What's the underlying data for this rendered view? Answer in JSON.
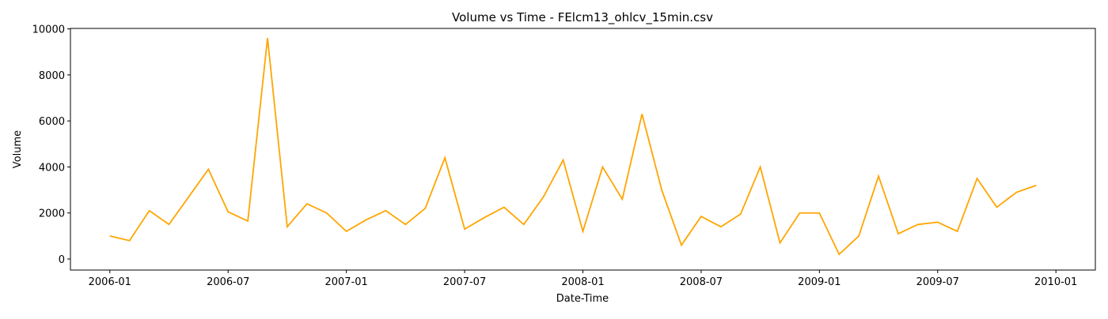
{
  "chart_data": {
    "type": "line",
    "title": "Volume vs Time - FElcm13_ohlcv_15min.csv",
    "xlabel": "Date-Time",
    "ylabel": "Volume",
    "x": [
      "2006-01",
      "2006-02",
      "2006-03",
      "2006-04",
      "2006-05",
      "2006-06",
      "2006-07",
      "2006-08",
      "2006-09",
      "2006-10",
      "2006-11",
      "2006-12",
      "2007-01",
      "2007-02",
      "2007-03",
      "2007-04",
      "2007-05",
      "2007-06",
      "2007-07",
      "2007-08",
      "2007-09",
      "2007-10",
      "2007-11",
      "2007-12",
      "2008-01",
      "2008-02",
      "2008-03",
      "2008-04",
      "2008-05",
      "2008-06",
      "2008-07",
      "2008-08",
      "2008-09",
      "2008-10",
      "2008-11",
      "2008-12",
      "2009-01",
      "2009-02",
      "2009-03",
      "2009-04",
      "2009-05",
      "2009-06",
      "2009-07",
      "2009-08",
      "2009-09",
      "2009-10",
      "2009-11",
      "2009-12"
    ],
    "series": [
      {
        "name": "Volume",
        "color": "#ffa500",
        "values": [
          1000,
          800,
          2100,
          1500,
          2700,
          3900,
          2050,
          1650,
          9600,
          1400,
          2400,
          2000,
          1200,
          1700,
          2100,
          1500,
          2200,
          4400,
          1300,
          1800,
          2250,
          1500,
          2700,
          4300,
          1200,
          4000,
          2600,
          6300,
          3000,
          600,
          1850,
          1400,
          1950,
          4000,
          700,
          2000,
          2000,
          200,
          1000,
          3600,
          1100,
          1500,
          1600,
          1200,
          3500,
          2250,
          2900,
          3200
        ]
      }
    ],
    "xlim": [
      "2005-11",
      "2010-03"
    ],
    "xticks": [
      "2006-01",
      "2006-07",
      "2007-01",
      "2007-07",
      "2008-01",
      "2008-07",
      "2009-01",
      "2009-07",
      "2010-01"
    ],
    "ylim": [
      -480,
      10020
    ],
    "yticks": [
      0,
      2000,
      4000,
      6000,
      8000,
      10000
    ]
  }
}
